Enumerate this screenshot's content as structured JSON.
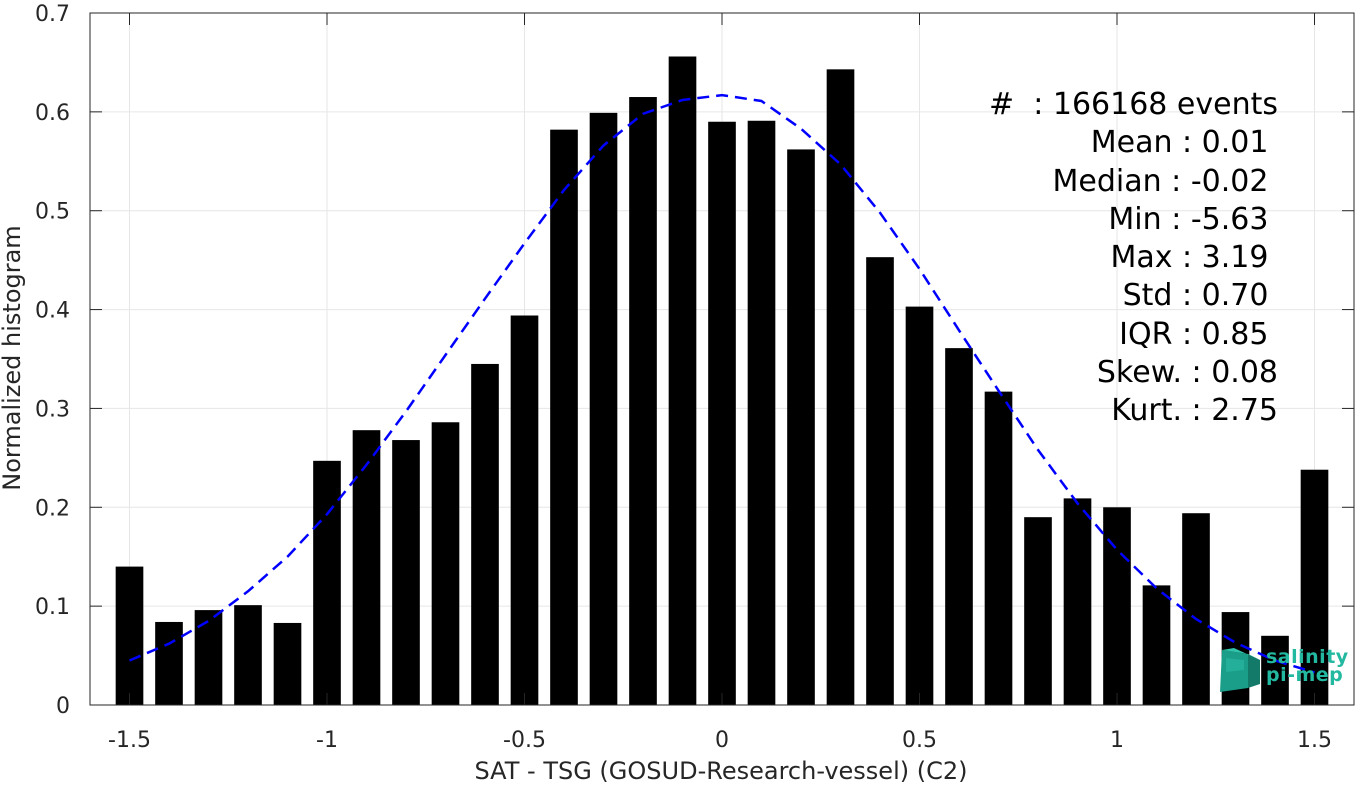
{
  "chart_data": {
    "type": "bar",
    "xlabel": "SAT - TSG (GOSUD-Research-vessel) (C2)",
    "ylabel": "Normalized histogram",
    "xlim": [
      -1.6,
      1.6
    ],
    "ylim": [
      0,
      0.7
    ],
    "xticks": [
      -1.5,
      -1,
      -0.5,
      0,
      0.5,
      1,
      1.5
    ],
    "xtick_labels": [
      "-1.5",
      "-1",
      "-0.5",
      "0",
      "0.5",
      "1",
      "1.5"
    ],
    "yticks": [
      0,
      0.1,
      0.2,
      0.3,
      0.4,
      0.5,
      0.6,
      0.7
    ],
    "ytick_labels": [
      "0",
      "0.1",
      "0.2",
      "0.3",
      "0.4",
      "0.5",
      "0.6",
      "0.7"
    ],
    "grid": true,
    "bar_color": "#000000",
    "bar_width": 0.07,
    "bars": {
      "x": [
        -1.5,
        -1.4,
        -1.3,
        -1.2,
        -1.1,
        -1.0,
        -0.9,
        -0.8,
        -0.7,
        -0.6,
        -0.5,
        -0.4,
        -0.3,
        -0.2,
        -0.1,
        0.0,
        0.1,
        0.2,
        0.3,
        0.4,
        0.5,
        0.6,
        0.7,
        0.8,
        0.9,
        1.0,
        1.1,
        1.2,
        1.3,
        1.4,
        1.5
      ],
      "values": [
        0.14,
        0.084,
        0.096,
        0.101,
        0.083,
        0.247,
        0.278,
        0.268,
        0.286,
        0.345,
        0.394,
        0.582,
        0.599,
        0.615,
        0.656,
        0.59,
        0.591,
        0.562,
        0.643,
        0.453,
        0.403,
        0.361,
        0.317,
        0.19,
        0.209,
        0.2,
        0.121,
        0.194,
        0.094,
        0.07,
        0.238
      ]
    },
    "fit_curve": {
      "style": "dashed",
      "color": "#0000ff",
      "x": [
        -1.5,
        -1.4,
        -1.3,
        -1.2,
        -1.1,
        -1.0,
        -0.9,
        -0.8,
        -0.7,
        -0.6,
        -0.5,
        -0.4,
        -0.3,
        -0.2,
        -0.1,
        0.0,
        0.1,
        0.2,
        0.3,
        0.4,
        0.5,
        0.6,
        0.7,
        0.8,
        0.9,
        1.0,
        1.1,
        1.2,
        1.3,
        1.4,
        1.5
      ],
      "y": [
        0.045,
        0.062,
        0.085,
        0.115,
        0.15,
        0.193,
        0.243,
        0.297,
        0.354,
        0.411,
        0.467,
        0.521,
        0.566,
        0.598,
        0.612,
        0.617,
        0.611,
        0.583,
        0.547,
        0.498,
        0.441,
        0.379,
        0.318,
        0.258,
        0.204,
        0.157,
        0.118,
        0.087,
        0.063,
        0.045,
        0.033
      ]
    }
  },
  "stats": [
    "#  : 166168 events",
    "Mean : 0.01 ",
    "Median : -0.02 ",
    "Min : -5.63 ",
    "Max : 3.19 ",
    "Std : 0.70 ",
    "IQR : 0.85 ",
    "Skew. : 0.08",
    "Kurt. : 2.75"
  ],
  "logo": {
    "line1": "salinity",
    "line2": "pi-mep",
    "color": "#23b8a0"
  }
}
